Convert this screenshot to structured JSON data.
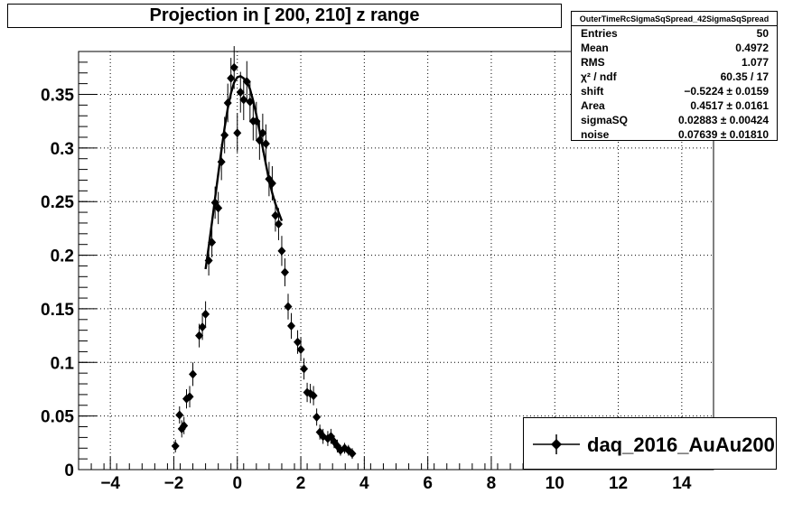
{
  "title": "Projection in [ 200, 210] z range",
  "stats": {
    "name": "OuterTimeRcSigmaSqSpread_42SigmaSqSpread",
    "rows": [
      {
        "label": "Entries",
        "value": "50"
      },
      {
        "label": "Mean",
        "value": "0.4972"
      },
      {
        "label": "RMS",
        "value": "1.077"
      },
      {
        "label": "χ² / ndf",
        "value": "60.35 / 17"
      },
      {
        "label": "shift",
        "value": "−0.5224 ± 0.0159"
      },
      {
        "label": "Area",
        "value": "0.4517 ± 0.0161"
      },
      {
        "label": "sigmaSQ",
        "value": "0.02883 ± 0.00424"
      },
      {
        "label": "noise",
        "value": "0.07639 ± 0.01810"
      }
    ]
  },
  "legend": {
    "entry": "daq_2016_AuAu200"
  },
  "colors": {
    "marker": "#000000",
    "fit": "#000000",
    "grid": "#000000"
  },
  "chart_data": {
    "type": "scatter",
    "title": "Projection in [ 200, 210] z range",
    "xlabel": "",
    "ylabel": "",
    "xlim": [
      -5,
      15
    ],
    "ylim": [
      0,
      0.39
    ],
    "grid": true,
    "legend_position": "bottom-right",
    "x_ticks": [
      -4,
      -2,
      0,
      2,
      4,
      6,
      8,
      10,
      12,
      14
    ],
    "x_tick_labels": [
      "−4",
      "−2",
      "0",
      "2",
      "4",
      "6",
      "8",
      "10",
      "12",
      "14"
    ],
    "y_ticks": [
      0,
      0.05,
      0.1,
      0.15,
      0.2,
      0.25,
      0.3,
      0.35
    ],
    "y_tick_labels": [
      "0",
      "0.05",
      "0.1",
      "0.15",
      "0.2",
      "0.25",
      "0.3",
      "0.35"
    ],
    "series": [
      {
        "name": "daq_2016_AuAu200",
        "x": [
          -1.95,
          -1.82,
          -1.75,
          -1.68,
          -1.6,
          -1.5,
          -1.4,
          -1.2,
          -1.1,
          -1.0,
          -0.9,
          -0.8,
          -0.7,
          -0.6,
          -0.5,
          -0.4,
          -0.3,
          -0.2,
          -0.1,
          0.0,
          0.1,
          0.2,
          0.3,
          0.4,
          0.5,
          0.6,
          0.7,
          0.8,
          0.9,
          1.0,
          1.1,
          1.2,
          1.3,
          1.4,
          1.5,
          1.6,
          1.7,
          1.9,
          2.0,
          2.1,
          2.2,
          2.3,
          2.4,
          2.5,
          2.6,
          2.7,
          2.85,
          2.95,
          3.05,
          3.15,
          3.25,
          3.38,
          3.5,
          3.62
        ],
        "y": [
          0.022,
          0.051,
          0.038,
          0.041,
          0.066,
          0.068,
          0.089,
          0.125,
          0.133,
          0.145,
          0.195,
          0.212,
          0.249,
          0.244,
          0.287,
          0.312,
          0.342,
          0.365,
          0.375,
          0.314,
          0.352,
          0.345,
          0.362,
          0.343,
          0.325,
          0.325,
          0.307,
          0.314,
          0.304,
          0.271,
          0.267,
          0.237,
          0.229,
          0.204,
          0.184,
          0.152,
          0.134,
          0.119,
          0.112,
          0.094,
          0.072,
          0.071,
          0.069,
          0.049,
          0.035,
          0.031,
          0.029,
          0.031,
          0.026,
          0.022,
          0.018,
          0.02,
          0.018,
          0.015
        ],
        "err": [
          0.006,
          0.008,
          0.008,
          0.008,
          0.009,
          0.01,
          0.011,
          0.011,
          0.012,
          0.012,
          0.014,
          0.014,
          0.015,
          0.015,
          0.017,
          0.017,
          0.018,
          0.019,
          0.02,
          0.018,
          0.019,
          0.019,
          0.019,
          0.019,
          0.018,
          0.018,
          0.018,
          0.018,
          0.018,
          0.016,
          0.016,
          0.015,
          0.015,
          0.014,
          0.013,
          0.012,
          0.012,
          0.011,
          0.011,
          0.01,
          0.009,
          0.009,
          0.009,
          0.008,
          0.007,
          0.007,
          0.007,
          0.007,
          0.006,
          0.006,
          0.005,
          0.005,
          0.005,
          0.005
        ]
      }
    ],
    "fit": {
      "x_range": [
        -1.0,
        1.4
      ],
      "x": [
        -1.0,
        -0.9,
        -0.8,
        -0.7,
        -0.6,
        -0.5,
        -0.4,
        -0.3,
        -0.2,
        -0.1,
        0.0,
        0.1,
        0.2,
        0.3,
        0.4,
        0.5,
        0.6,
        0.7,
        0.8,
        0.9,
        1.0,
        1.1,
        1.2,
        1.3,
        1.4
      ],
      "y": [
        0.187,
        0.208,
        0.23,
        0.253,
        0.276,
        0.298,
        0.319,
        0.337,
        0.351,
        0.361,
        0.366,
        0.367,
        0.365,
        0.362,
        0.355,
        0.344,
        0.331,
        0.316,
        0.3,
        0.285,
        0.27,
        0.258,
        0.248,
        0.24,
        0.232
      ]
    }
  }
}
